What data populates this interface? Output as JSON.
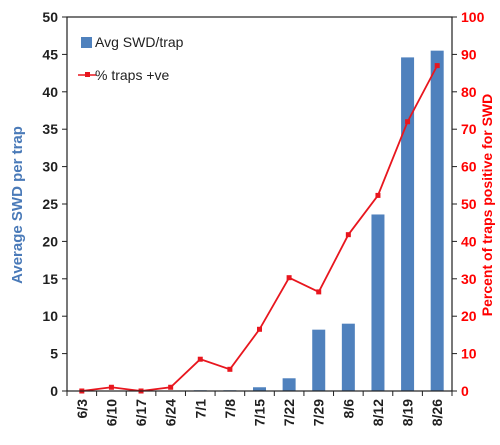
{
  "chart_data": {
    "type": "bar",
    "categories": [
      "6/3",
      "6/10",
      "6/17",
      "6/24",
      "7/1",
      "7/8",
      "7/15",
      "7/22",
      "7/29",
      "8/6",
      "8/12",
      "8/19",
      "8/26"
    ],
    "series": [
      {
        "name": "Avg SWD/trap",
        "type": "bar",
        "axis": "left",
        "color": "#4f81bd",
        "values": [
          0,
          0,
          0,
          0,
          0.1,
          0.1,
          0.5,
          1.7,
          8.2,
          9.0,
          23.6,
          44.6,
          45.5
        ]
      },
      {
        "name": "% traps +ve",
        "type": "line",
        "axis": "right",
        "color": "#e8161e",
        "values": [
          0,
          1,
          0,
          1,
          8.5,
          5.8,
          16.5,
          30.3,
          26.5,
          41.8,
          52.3,
          72,
          87
        ]
      }
    ],
    "ylabel_left": "Average SWD per trap",
    "ylabel_right": "Percent of traps positive for SWD",
    "ylim_left": [
      0,
      50
    ],
    "ylim_right": [
      0,
      100
    ],
    "yticks_left": [
      "0",
      "5",
      "10",
      "15",
      "20",
      "25",
      "30",
      "35",
      "40",
      "45",
      "50"
    ],
    "yticks_right": [
      "0",
      "10",
      "20",
      "30",
      "40",
      "50",
      "60",
      "70",
      "80",
      "90",
      "100"
    ],
    "grid": false,
    "legend_position": "top-left"
  }
}
